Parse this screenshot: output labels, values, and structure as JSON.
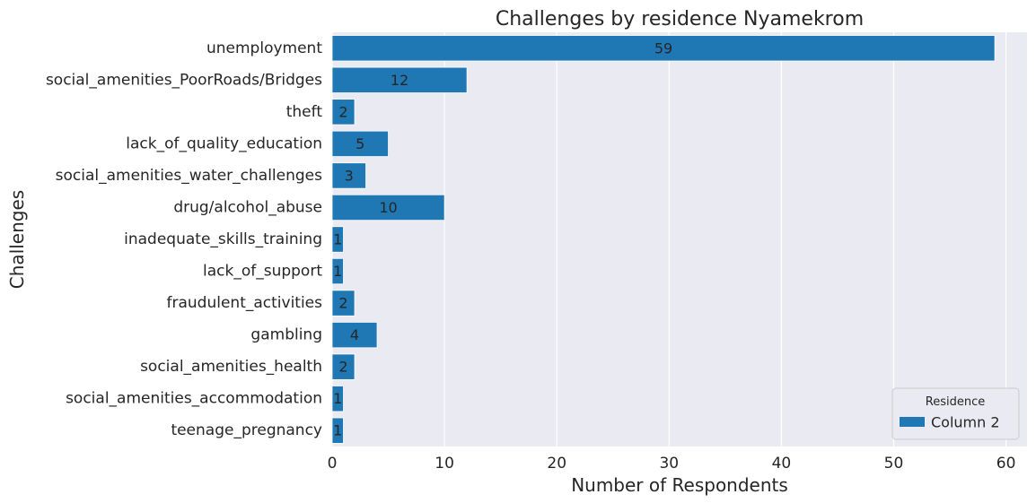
{
  "chart_data": {
    "type": "bar",
    "orientation": "horizontal",
    "title": "Challenges by residence Nyamekrom",
    "xlabel": "Number of Respondents",
    "ylabel": "Challenges",
    "xlim": [
      0,
      61.9
    ],
    "xticks": [
      0,
      10,
      20,
      30,
      40,
      50,
      60
    ],
    "grid": true,
    "categories": [
      "unemployment",
      "social_amenities_PoorRoads/Bridges",
      "theft",
      "lack_of_quality_education",
      "social_amenities_water_challenges",
      "drug/alcohol_abuse",
      "inadequate_skills_training",
      "lack_of_support",
      "fraudulent_activities",
      "gambling",
      "social_amenities_health",
      "social_amenities_accommodation",
      "teenage_pregnancy"
    ],
    "series": [
      {
        "name": "Column 2",
        "color": "#1f77b4",
        "values": [
          59,
          12,
          2,
          5,
          3,
          10,
          1,
          1,
          2,
          4,
          2,
          1,
          1
        ]
      }
    ],
    "legend": {
      "title": "Residence",
      "placement": "lower-right"
    }
  }
}
